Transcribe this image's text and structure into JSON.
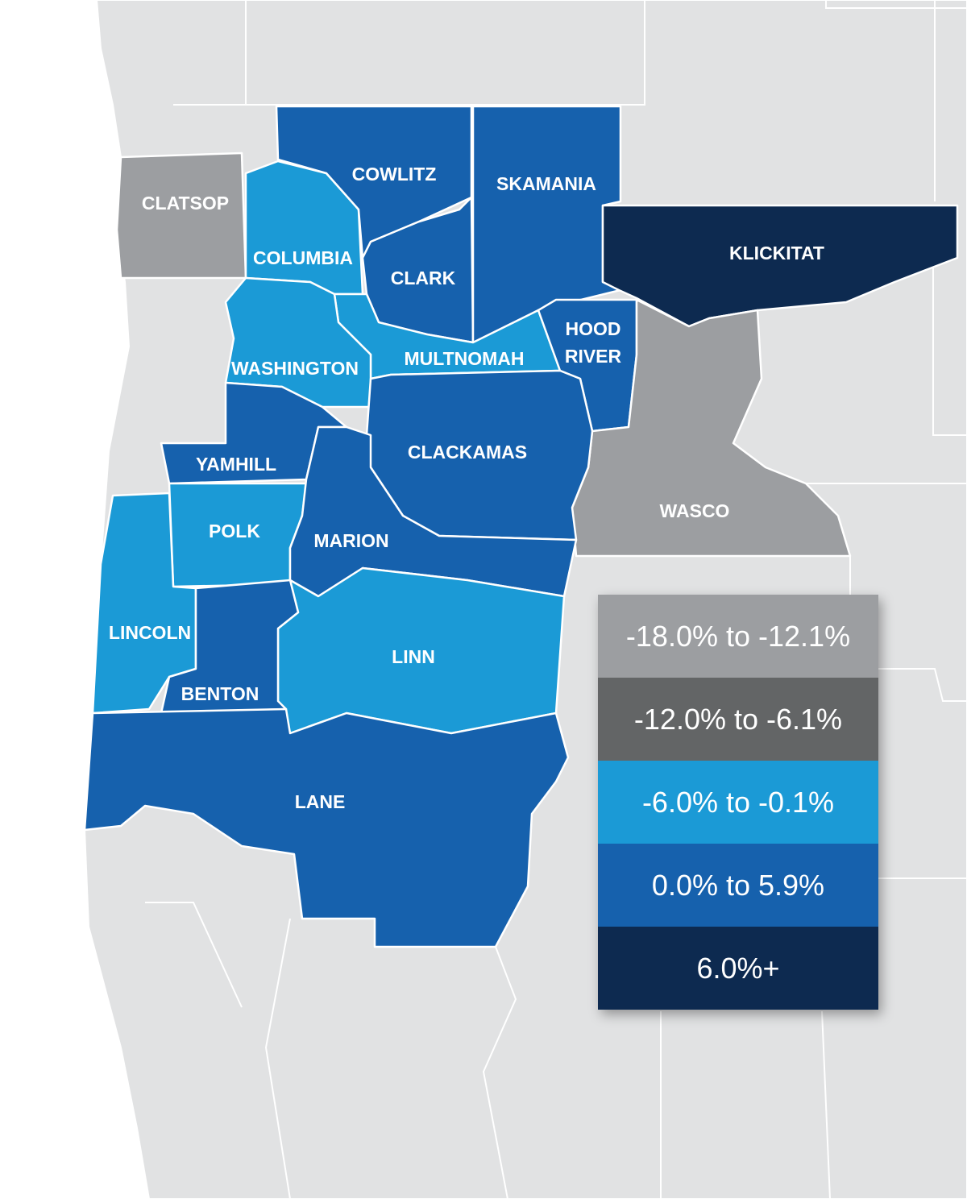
{
  "counties": [
    {
      "name": "CLATSOP",
      "color": "#9c9ea1"
    },
    {
      "name": "COLUMBIA",
      "color": "#1b9ad6"
    },
    {
      "name": "COWLITZ",
      "color": "#1661ad"
    },
    {
      "name": "CLARK",
      "color": "#1661ad"
    },
    {
      "name": "SKAMANIA",
      "color": "#1661ad"
    },
    {
      "name": "KLICKITAT",
      "color": "#0d2a50"
    },
    {
      "name": "MULTNOMAH",
      "color": "#1b9ad6"
    },
    {
      "name": "WASHINGTON",
      "color": "#1b9ad6"
    },
    {
      "name": "HOOD RIVER",
      "color": "#1661ad"
    },
    {
      "name": "WASCO",
      "color": "#9c9ea1"
    },
    {
      "name": "CLACKAMAS",
      "color": "#1661ad"
    },
    {
      "name": "YAMHILL",
      "color": "#1661ad"
    },
    {
      "name": "POLK",
      "color": "#1b9ad6"
    },
    {
      "name": "MARION",
      "color": "#1661ad"
    },
    {
      "name": "LINN",
      "color": "#1b9ad6"
    },
    {
      "name": "LINCOLN",
      "color": "#1b9ad6"
    },
    {
      "name": "BENTON",
      "color": "#1661ad"
    },
    {
      "name": "LANE",
      "color": "#1661ad"
    }
  ],
  "legend": [
    {
      "label": "-18.0% to -12.1%",
      "color": "#9c9ea1"
    },
    {
      "label": "-12.0% to -6.1%",
      "color": "#636566"
    },
    {
      "label": "-6.0% to -0.1%",
      "color": "#1b9ad6"
    },
    {
      "label": "0.0% to 5.9%",
      "color": "#1661ad"
    },
    {
      "label": "6.0%+",
      "color": "#0d2a50"
    }
  ]
}
